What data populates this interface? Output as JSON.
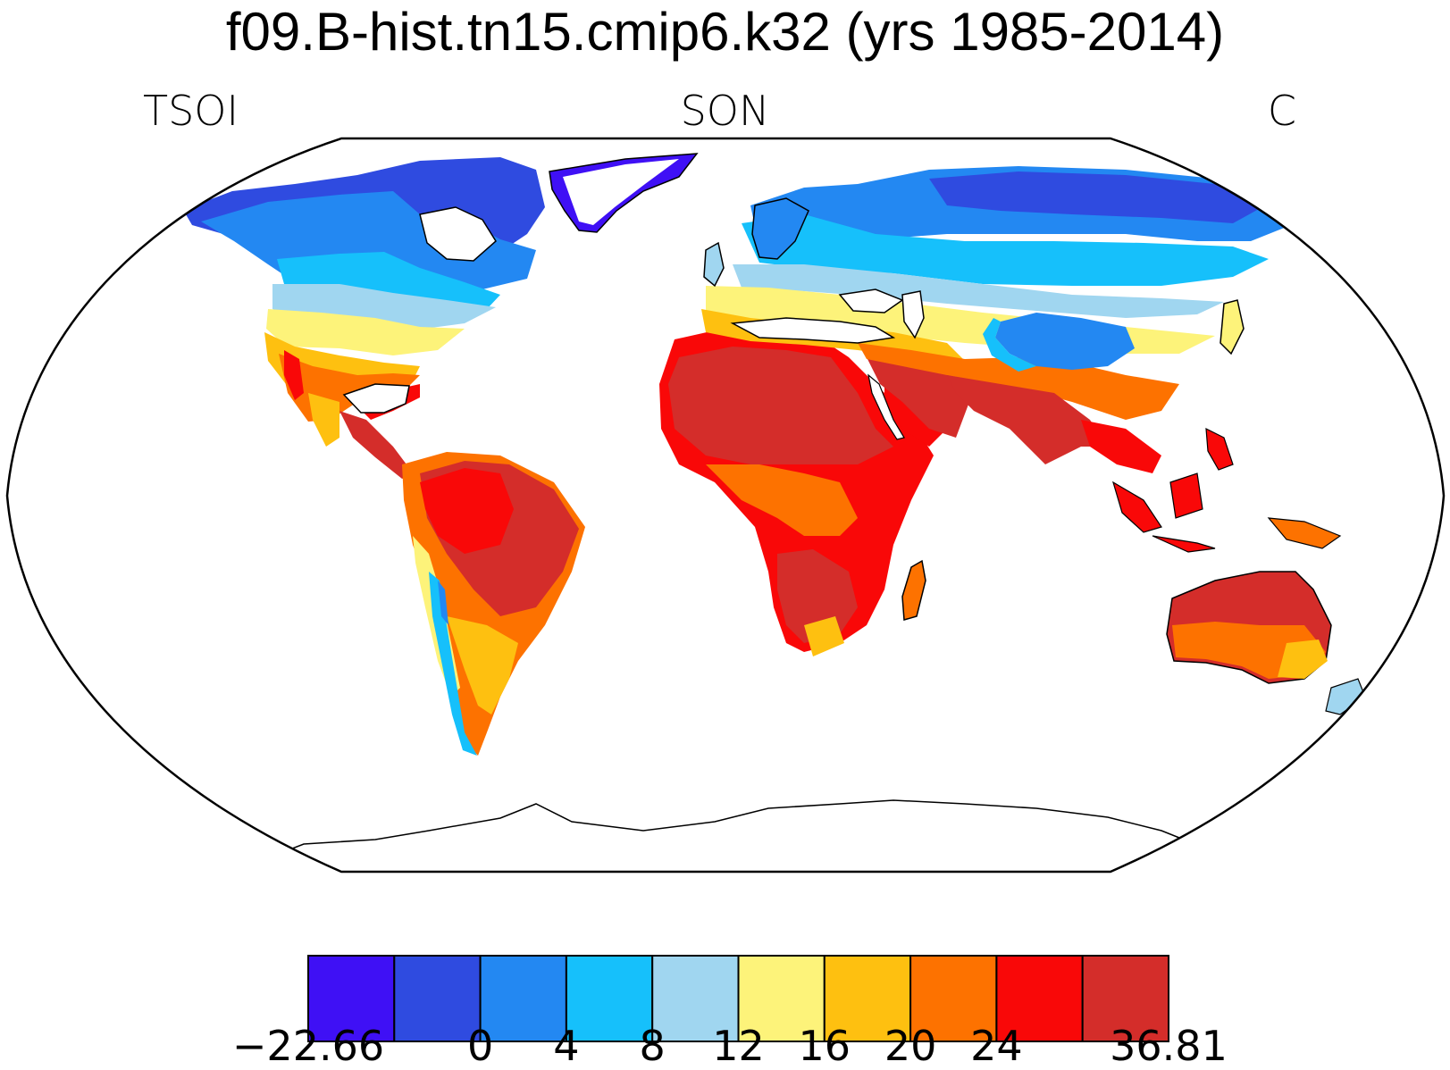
{
  "title": "f09.B-hist.tn15.cmip6.k32 (yrs 1985-2014)",
  "left_label": "TSOI",
  "center_label": "SON",
  "right_label": "C",
  "colorbar": {
    "colors": [
      "#3f10f5",
      "#2f4be0",
      "#2388f2",
      "#16c0fb",
      "#a0d6f0",
      "#fdf37a",
      "#fec010",
      "#fd7200",
      "#f90808",
      "#d42d2a"
    ],
    "labels": [
      "−22.66",
      "0",
      "4",
      "8",
      "12",
      "16",
      "20",
      "24",
      "36.81"
    ],
    "label_positions": [
      0,
      2,
      3,
      4,
      5,
      6,
      7,
      8,
      10
    ]
  }
}
